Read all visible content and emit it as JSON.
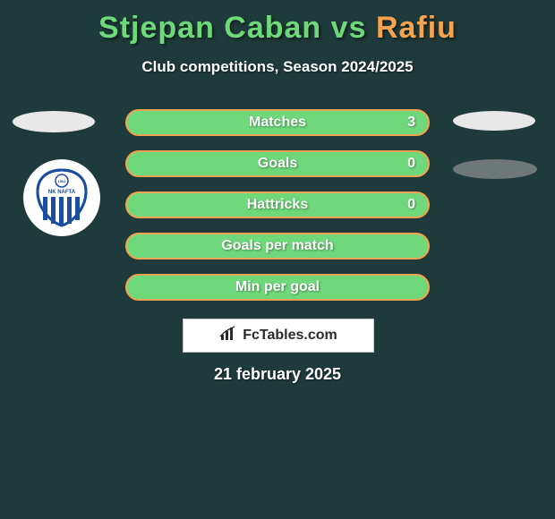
{
  "header": {
    "player1": "Stjepan Caban",
    "vs": " vs ",
    "player2": "Rafiu",
    "player1_color": "#6fd87a",
    "player2_color": "#f5a34f",
    "subtitle": "Club competitions, Season 2024/2025"
  },
  "background_color": "#1f3a3a",
  "stats": [
    {
      "label": "Matches",
      "right_value": "3",
      "bg": "#6fd87a",
      "border": "#f5a34f",
      "text": "#ffffff"
    },
    {
      "label": "Goals",
      "right_value": "0",
      "bg": "#6fd87a",
      "border": "#f5a34f",
      "text": "#ffffff"
    },
    {
      "label": "Hattricks",
      "right_value": "0",
      "bg": "#6fd87a",
      "border": "#f5a34f",
      "text": "#ffffff"
    },
    {
      "label": "Goals per match",
      "right_value": "",
      "bg": "#6fd87a",
      "border": "#f5a34f",
      "text": "#ffffff"
    },
    {
      "label": "Min per goal",
      "right_value": "",
      "bg": "#6fd87a",
      "border": "#f5a34f",
      "text": "#ffffff"
    }
  ],
  "badge": {
    "name": "NK NAFTA",
    "year": "1903",
    "outer_color": "#1b4ea0",
    "stripe_color": "#1b4ea0"
  },
  "attribution": "FcTables.com",
  "date": "21 february 2025"
}
